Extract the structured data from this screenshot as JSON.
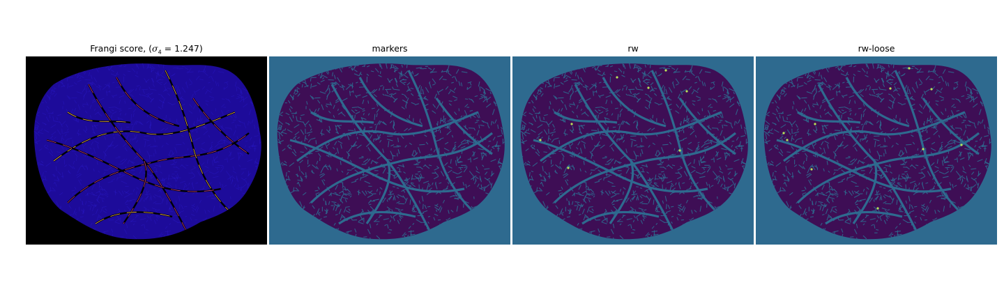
{
  "figure": {
    "panels": [
      {
        "id": "frangi",
        "title_prefix": "Frangi score, (",
        "title_sigma": "σ",
        "title_sub": "4",
        "title_suffix": " = 1.247)",
        "title": "Frangi score, (σ4 = 1.247)",
        "colormap": "plasma",
        "background": "#000000",
        "texture": "#1d0b9a",
        "vessel": "#c93f7a",
        "hot": "#f5b74a"
      },
      {
        "id": "markers",
        "title": "markers",
        "colormap": "viridis",
        "background": "#2e6a8f",
        "texture": "#3e0e55",
        "vessel": "#2e6a8f"
      },
      {
        "id": "rw",
        "title": "rw",
        "colormap": "viridis",
        "background": "#2e6a8f",
        "texture": "#3e0e55",
        "vessel": "#2e6a8f",
        "specks": "#b8e45a"
      },
      {
        "id": "rw-loose",
        "title": "rw-loose",
        "colormap": "viridis",
        "background": "#2e6a8f",
        "texture": "#3e0e55",
        "vessel": "#2e6a8f",
        "specks": "#b8e45a"
      }
    ]
  }
}
